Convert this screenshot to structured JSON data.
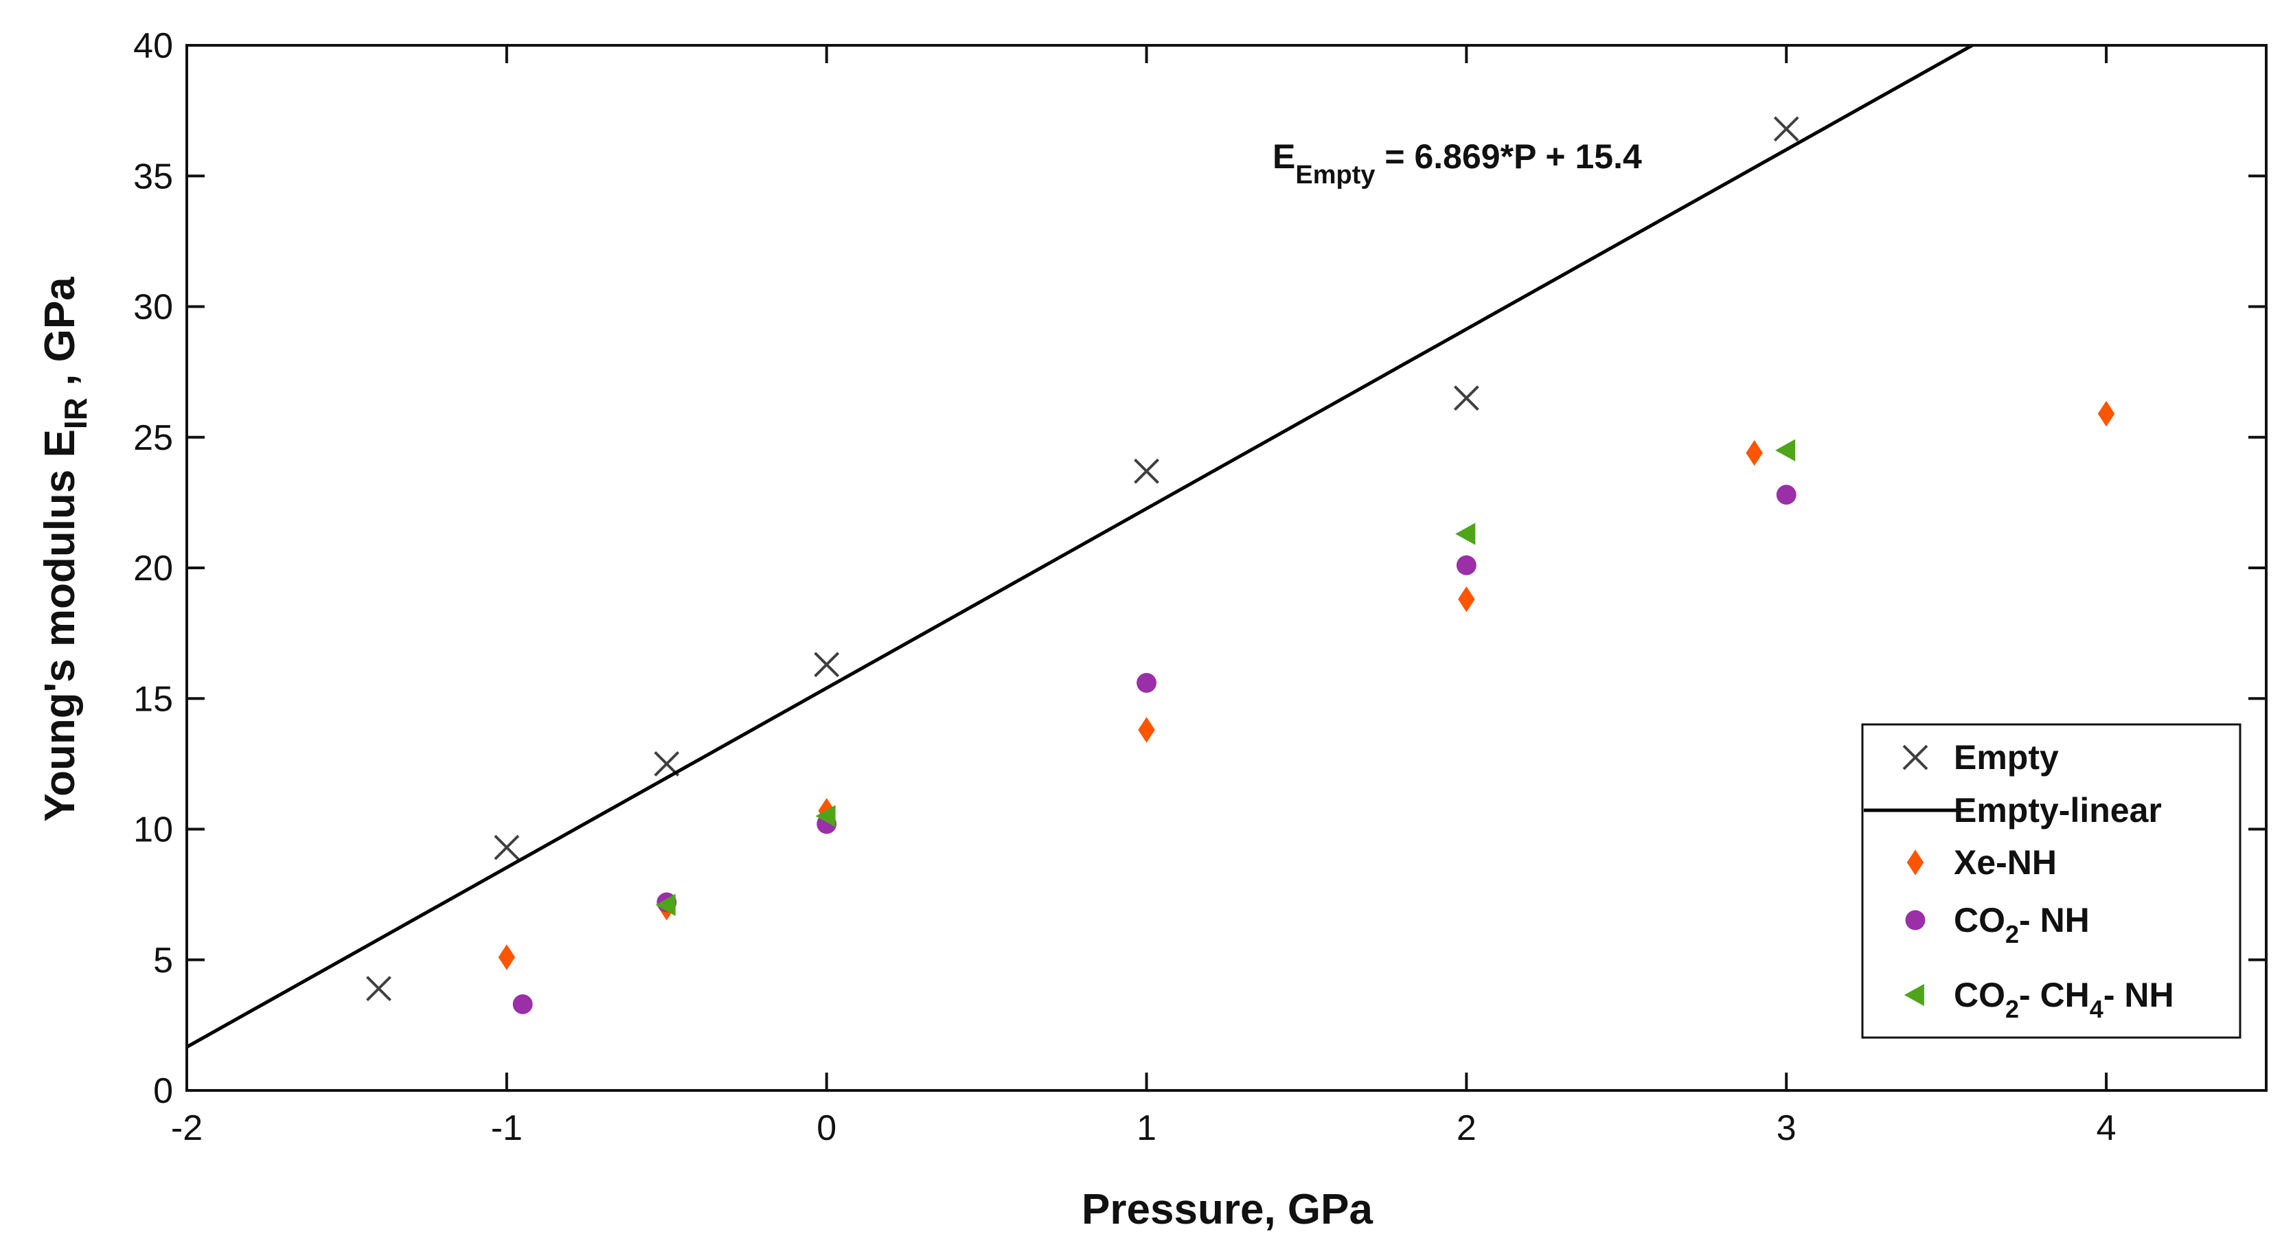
{
  "chart_data": {
    "type": "scatter",
    "title": "",
    "xlabel": "Pressure, GPa",
    "ylabel": {
      "main": "Young's modulus E",
      "sub": "IR",
      "suffix": " , GPa"
    },
    "xlim": [
      -2,
      4.5
    ],
    "ylim": [
      0,
      40
    ],
    "xticks": [
      -2,
      -1,
      0,
      1,
      2,
      3,
      4
    ],
    "yticks": [
      0,
      5,
      10,
      15,
      20,
      25,
      30,
      35,
      40
    ],
    "xtick_labels": [
      "-2",
      "-1",
      "0",
      "1",
      "2",
      "3",
      "4"
    ],
    "ytick_labels": [
      "0",
      "5",
      "10",
      "15",
      "20",
      "25",
      "30",
      "35",
      "40"
    ],
    "grid": false,
    "legend_position": "bottom-right",
    "series": [
      {
        "name": "Empty",
        "marker": "x",
        "color": "#404040",
        "points": [
          [
            -1.4,
            3.9
          ],
          [
            -1.0,
            9.3
          ],
          [
            -0.5,
            12.5
          ],
          [
            0.0,
            16.3
          ],
          [
            1.0,
            23.7
          ],
          [
            2.0,
            26.5
          ],
          [
            3.0,
            36.8
          ]
        ]
      },
      {
        "name": "Empty-linear",
        "marker": "line",
        "color": "#000000",
        "slope": 6.869,
        "intercept": 15.4
      },
      {
        "name": "Xe-NH",
        "marker": "diamond",
        "color": "#ff5500",
        "points": [
          [
            -1.0,
            5.1
          ],
          [
            -0.5,
            7.0
          ],
          [
            0.0,
            10.7
          ],
          [
            1.0,
            13.8
          ],
          [
            2.0,
            18.8
          ],
          [
            2.9,
            24.4
          ],
          [
            4.0,
            25.9
          ]
        ]
      },
      {
        "name": "CO2- NH",
        "marker": "circle",
        "color": "#9a2fa8",
        "points": [
          [
            -0.95,
            3.3
          ],
          [
            -0.5,
            7.2
          ],
          [
            0.0,
            10.2
          ],
          [
            1.0,
            15.6
          ],
          [
            2.0,
            20.1
          ],
          [
            3.0,
            22.8
          ]
        ]
      },
      {
        "name": "CO2- CH4- NH",
        "marker": "triangle-left",
        "color": "#4fa51a",
        "points": [
          [
            -0.5,
            7.1
          ],
          [
            0.0,
            10.5
          ],
          [
            2.0,
            21.3
          ],
          [
            3.0,
            24.5
          ]
        ]
      }
    ],
    "annotation": {
      "main": "E",
      "sub": "Empty",
      "rest": " = 6.869*P + 15.4"
    },
    "legend": [
      {
        "label": "Empty",
        "parts": [
          {
            "t": "Empty"
          }
        ]
      },
      {
        "label": "Empty-linear",
        "parts": [
          {
            "t": "Empty-linear"
          }
        ]
      },
      {
        "label": "Xe-NH",
        "parts": [
          {
            "t": "Xe-NH"
          }
        ]
      },
      {
        "label": "CO2- NH",
        "parts": [
          {
            "t": "CO"
          },
          {
            "t": "2",
            "sub": true
          },
          {
            "t": "- NH"
          }
        ]
      },
      {
        "label": "CO2- CH4- NH",
        "parts": [
          {
            "t": "CO"
          },
          {
            "t": "2",
            "sub": true
          },
          {
            "t": "- CH"
          },
          {
            "t": "4",
            "sub": true
          },
          {
            "t": "- NH"
          }
        ]
      }
    ]
  }
}
